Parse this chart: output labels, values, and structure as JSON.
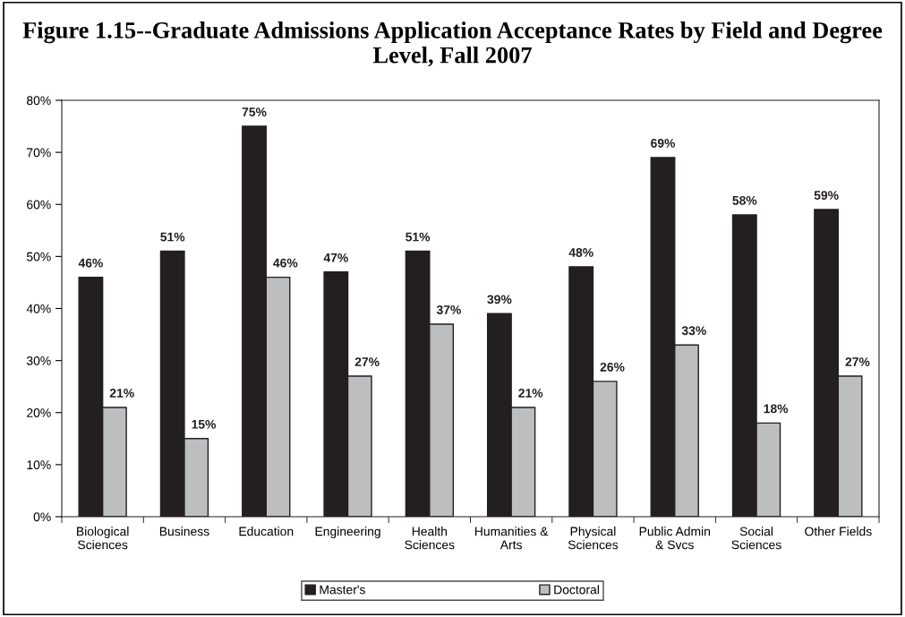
{
  "chart_data": {
    "type": "bar",
    "title": "Figure 1.15--Graduate Admissions Application Acceptance Rates by Field and Degree Level, Fall 2007",
    "categories": [
      "Biological\nSciences",
      "Business",
      "Education",
      "Engineering",
      "Health\nSciences",
      "Humanities &\nArts",
      "Physical\nSciences",
      "Public Admin\n& Svcs",
      "Social\nSciences",
      "Other Fields"
    ],
    "series": [
      {
        "name": "Master's",
        "color": "#231f20",
        "values": [
          46,
          51,
          75,
          47,
          51,
          39,
          48,
          69,
          58,
          59
        ],
        "value_labels": [
          "46%",
          "51%",
          "75%",
          "47%",
          "51%",
          "39%",
          "48%",
          "69%",
          "58%",
          "59%"
        ]
      },
      {
        "name": "Doctoral",
        "color": "#bcbec0",
        "values": [
          21,
          15,
          46,
          27,
          37,
          21,
          26,
          33,
          18,
          27
        ],
        "value_labels": [
          "21%",
          "15%",
          "46%",
          "27%",
          "37%",
          "21%",
          "26%",
          "33%",
          "18%",
          "27%"
        ]
      }
    ],
    "ylim": [
      0,
      80
    ],
    "yticks": [
      {
        "value": 0,
        "label": "0%"
      },
      {
        "value": 10,
        "label": "10%"
      },
      {
        "value": 20,
        "label": "20%"
      },
      {
        "value": 30,
        "label": "30%"
      },
      {
        "value": 40,
        "label": "40%"
      },
      {
        "value": 50,
        "label": "50%"
      },
      {
        "value": 60,
        "label": "60%"
      },
      {
        "value": 70,
        "label": "70%"
      },
      {
        "value": 80,
        "label": "80%"
      }
    ],
    "grid": false,
    "legend": "bottom"
  }
}
